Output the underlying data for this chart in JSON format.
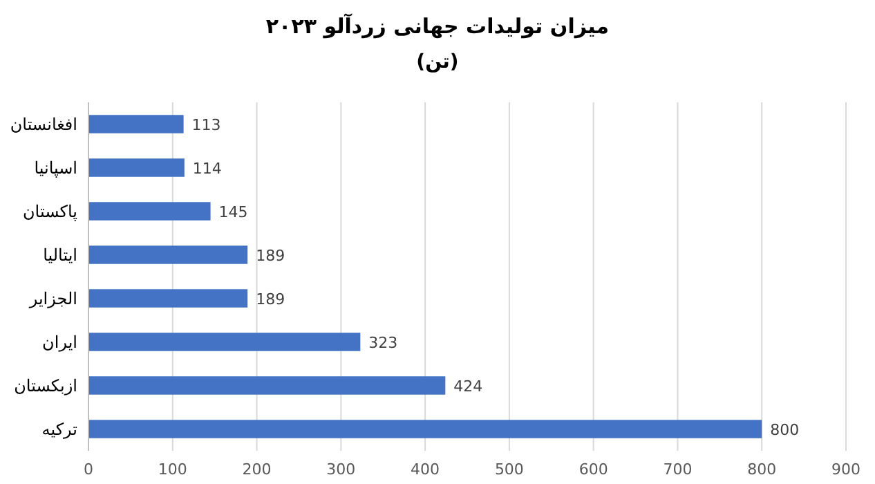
{
  "chart_data": {
    "type": "bar",
    "orientation": "horizontal",
    "title": "میزان تولیدات جهانی زردآلو ۲۰۲۳",
    "subtitle": "(تن)",
    "categories": [
      "افغانستان",
      "اسپانیا",
      "پاکستان",
      "ایتالیا",
      "الجزایر",
      "ایران",
      "ازبکستان",
      "ترکیه"
    ],
    "values": [
      113,
      114,
      145,
      189,
      189,
      323,
      424,
      800
    ],
    "color": "#4472c4",
    "xlim": [
      0,
      900
    ],
    "xticks": [
      0,
      100,
      200,
      300,
      400,
      500,
      600,
      700,
      800,
      900
    ],
    "grid": "x",
    "data_labels": true
  }
}
